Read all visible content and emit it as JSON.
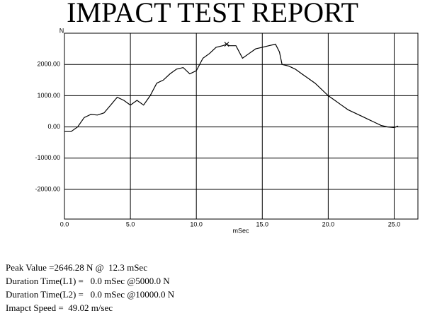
{
  "chart_data": {
    "type": "line",
    "title": "IMPACT TEST REPORT",
    "xlabel": "mSec",
    "ylabel": "N",
    "color": "#000000",
    "grid": true,
    "x": [
      0,
      0.5,
      1.0,
      1.5,
      2.0,
      2.5,
      3.0,
      3.5,
      4.0,
      4.5,
      5.0,
      5.5,
      6.0,
      6.5,
      7.0,
      7.5,
      8.0,
      8.5,
      9.0,
      9.5,
      10.0,
      10.5,
      11.0,
      11.5,
      12.0,
      12.3,
      12.5,
      13.0,
      13.5,
      14.0,
      14.5,
      15.0,
      15.5,
      16.0,
      16.3,
      16.5,
      17.0,
      17.5,
      18.0,
      18.5,
      19.0,
      19.5,
      20.0,
      20.5,
      21.0,
      21.5,
      22.0,
      22.5,
      23.0,
      23.5,
      24.0,
      24.5,
      25.0,
      25.3
    ],
    "values": [
      -150,
      -150,
      0,
      300,
      400,
      380,
      450,
      700,
      950,
      850,
      700,
      850,
      700,
      1000,
      1400,
      1500,
      1700,
      1850,
      1900,
      1700,
      1800,
      2200,
      2350,
      2550,
      2600,
      2646.28,
      2600,
      2600,
      2200,
      2350,
      2500,
      2550,
      2600,
      2650,
      2400,
      2000,
      1950,
      1850,
      1700,
      1550,
      1400,
      1200,
      1000,
      850,
      700,
      550,
      450,
      350,
      250,
      150,
      50,
      0,
      -20,
      30
    ],
    "marker": {
      "x": 12.3,
      "y": 2646.28
    },
    "xlim": [
      0,
      26.8
    ],
    "xticks": [
      {
        "value": 0,
        "label": "0.0"
      },
      {
        "value": 5,
        "label": "5.0"
      },
      {
        "value": 10,
        "label": "10.0"
      },
      {
        "value": 15,
        "label": "15.0"
      },
      {
        "value": 20,
        "label": "20.0"
      },
      {
        "value": 25,
        "label": "25.0"
      }
    ],
    "ylim": [
      -2950,
      3000
    ],
    "yticks": [
      {
        "value": 2000,
        "label": "2000.00"
      },
      {
        "value": 1000,
        "label": "1000.00"
      },
      {
        "value": 0,
        "label": "0.00"
      },
      {
        "value": -1000,
        "label": "-1000.00"
      },
      {
        "value": -2000,
        "label": "-2000.00"
      }
    ],
    "annotations": [
      "Peak Value =2646.28 N @  12.3 mSec",
      "Duration Time(L1) =   0.0 mSec @5000.0 N",
      "Duration Time(L2) =   0.0 mSec @10000.0 N",
      "Imapct Speed =  49.02 m/sec"
    ]
  }
}
